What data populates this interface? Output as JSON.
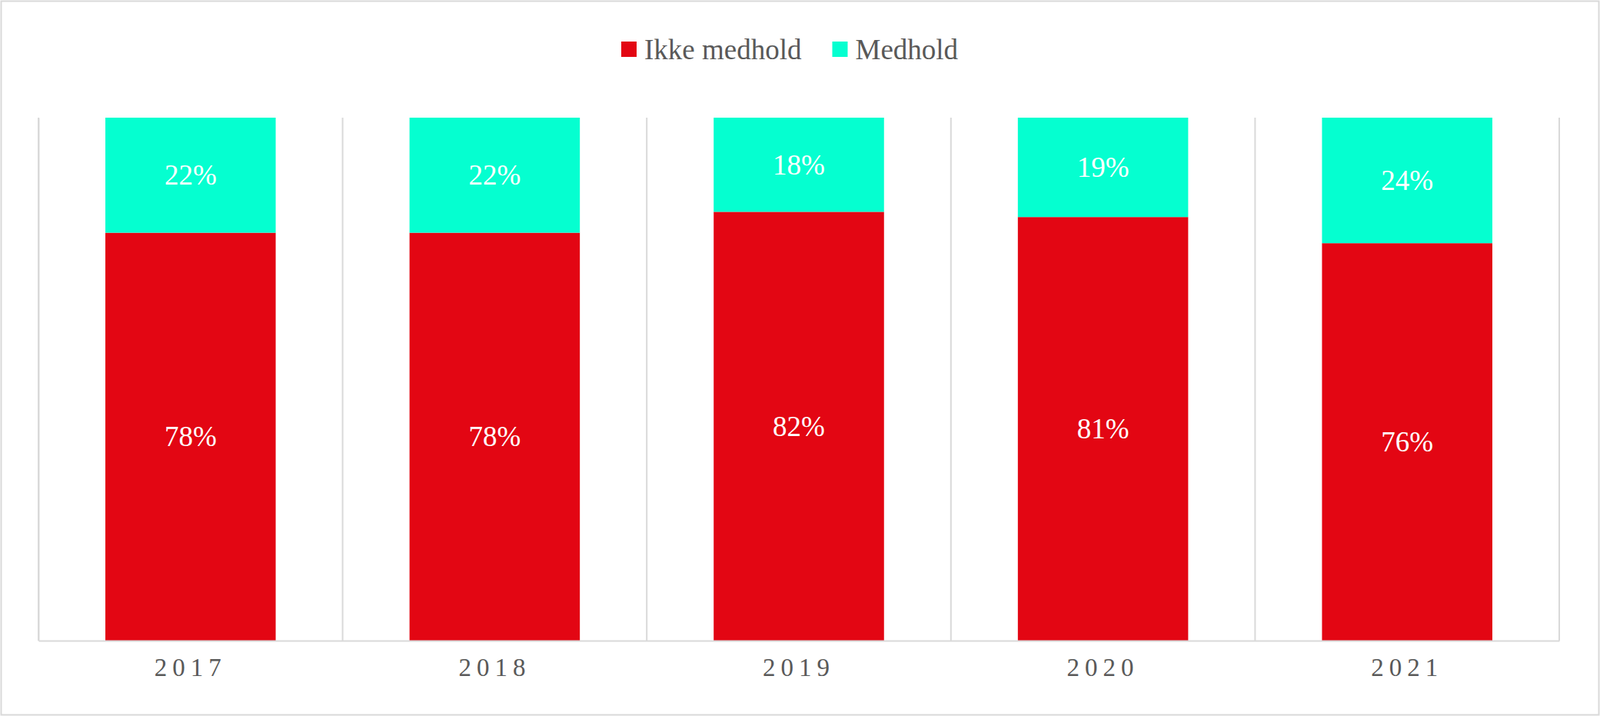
{
  "chart_data": {
    "type": "bar",
    "stacked": true,
    "data_labels": true,
    "tick_labels": "x",
    "legend": "top",
    "categories": [
      "2017",
      "2018",
      "2019",
      "2020",
      "2021"
    ],
    "ylim": [
      0,
      100
    ],
    "series": [
      {
        "name": "Ikke medhold",
        "color": "#e30613",
        "values": [
          78,
          78,
          82,
          81,
          76
        ],
        "value_labels": [
          "78%",
          "78%",
          "82%",
          "81%",
          "76%"
        ]
      },
      {
        "name": "Medhold",
        "color": "#05ffd0",
        "values": [
          22,
          22,
          18,
          19,
          24
        ],
        "value_labels": [
          "22%",
          "22%",
          "18%",
          "19%",
          "24%"
        ]
      }
    ]
  }
}
